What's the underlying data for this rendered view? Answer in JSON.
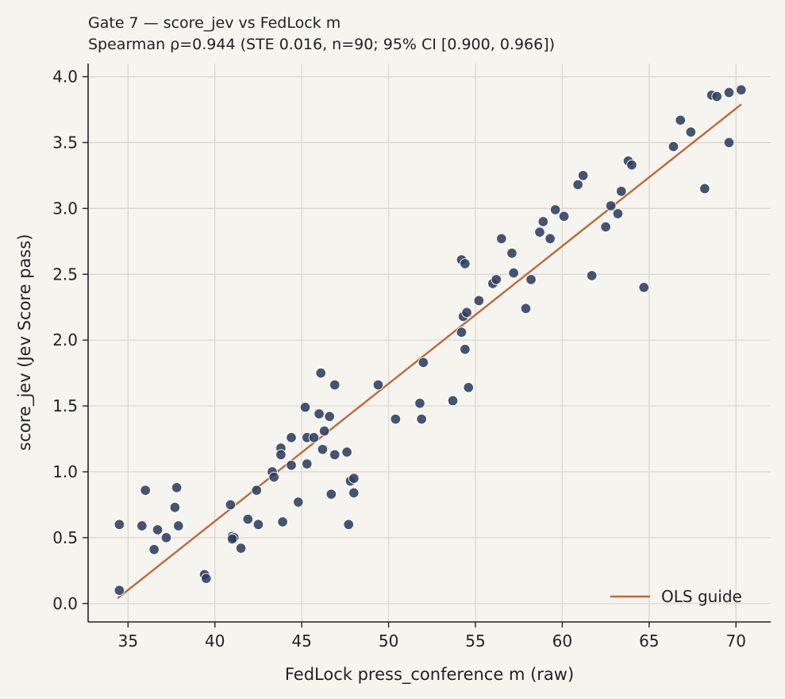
{
  "chart_data": {
    "type": "scatter",
    "title": "Gate 7 — score_jev vs FedLock m",
    "subtitle": "Spearman ρ=0.944 (STE 0.016, n=90; 95% CI [0.900, 0.966])",
    "xlabel": "FedLock press_conference m (raw)",
    "ylabel": "score_jev (Jev Score pass)",
    "xlim": [
      32.7,
      72.0
    ],
    "ylim": [
      -0.14,
      4.1
    ],
    "xticks": [
      35,
      40,
      45,
      50,
      55,
      60,
      65,
      70
    ],
    "xtick_labels": [
      "35",
      "40",
      "45",
      "50",
      "55",
      "60",
      "65",
      "70"
    ],
    "yticks": [
      0.0,
      0.5,
      1.0,
      1.5,
      2.0,
      2.5,
      3.0,
      3.5,
      4.0
    ],
    "ytick_labels": [
      "0.0",
      "0.5",
      "1.0",
      "1.5",
      "2.0",
      "2.5",
      "3.0",
      "3.5",
      "4.0"
    ],
    "grid": true,
    "legend_position": "bottom-right",
    "point_color": "#2c3e5f",
    "line_color": "#c0683a",
    "series": [
      {
        "kind": "scatter",
        "x": [
          34.5,
          34.5,
          35.8,
          36.0,
          36.5,
          36.7,
          37.2,
          37.7,
          37.8,
          37.9,
          39.4,
          39.5,
          40.9,
          41.0,
          41.1,
          41.0,
          41.5,
          41.9,
          42.4,
          42.5,
          43.3,
          43.4,
          43.8,
          43.8,
          43.9,
          44.4,
          44.4,
          44.8,
          45.2,
          45.3,
          45.3,
          45.7,
          46.0,
          46.1,
          46.2,
          46.3,
          46.6,
          46.7,
          46.9,
          46.9,
          47.6,
          47.7,
          47.8,
          48.0,
          48.0,
          49.4,
          50.4,
          51.8,
          51.9,
          52.0,
          53.7,
          54.2,
          54.2,
          54.3,
          54.4,
          54.4,
          54.5,
          54.6,
          55.2,
          56.0,
          56.2,
          56.5,
          57.1,
          57.2,
          57.9,
          58.2,
          58.7,
          58.9,
          59.3,
          59.6,
          60.1,
          60.9,
          61.2,
          61.7,
          62.5,
          62.8,
          63.2,
          63.4,
          63.8,
          64.0,
          64.7,
          66.4,
          66.8,
          67.4,
          68.2,
          68.6,
          68.9,
          69.6,
          69.6,
          70.3
        ],
        "y": [
          0.1,
          0.6,
          0.59,
          0.86,
          0.41,
          0.56,
          0.5,
          0.73,
          0.88,
          0.59,
          0.22,
          0.19,
          0.75,
          0.51,
          0.5,
          0.49,
          0.42,
          0.64,
          0.86,
          0.6,
          1.0,
          0.96,
          1.18,
          1.13,
          0.62,
          1.26,
          1.05,
          0.77,
          1.49,
          1.26,
          1.06,
          1.26,
          1.44,
          1.75,
          1.17,
          1.31,
          1.42,
          0.83,
          1.66,
          1.13,
          1.15,
          0.6,
          0.93,
          0.95,
          0.84,
          1.66,
          1.4,
          1.52,
          1.4,
          1.83,
          1.54,
          2.61,
          2.06,
          2.18,
          2.58,
          1.93,
          2.21,
          1.64,
          2.3,
          2.43,
          2.46,
          2.77,
          2.66,
          2.51,
          2.24,
          2.46,
          2.82,
          2.9,
          2.77,
          2.99,
          2.94,
          3.18,
          3.25,
          2.49,
          2.86,
          3.02,
          2.96,
          3.13,
          3.36,
          3.33,
          2.4,
          3.47,
          3.67,
          3.58,
          3.15,
          3.86,
          3.85,
          3.88,
          3.5,
          3.9
        ]
      },
      {
        "kind": "line",
        "name": "OLS guide",
        "x": [
          34.4,
          70.3
        ],
        "y": [
          0.04,
          3.79
        ]
      }
    ]
  }
}
